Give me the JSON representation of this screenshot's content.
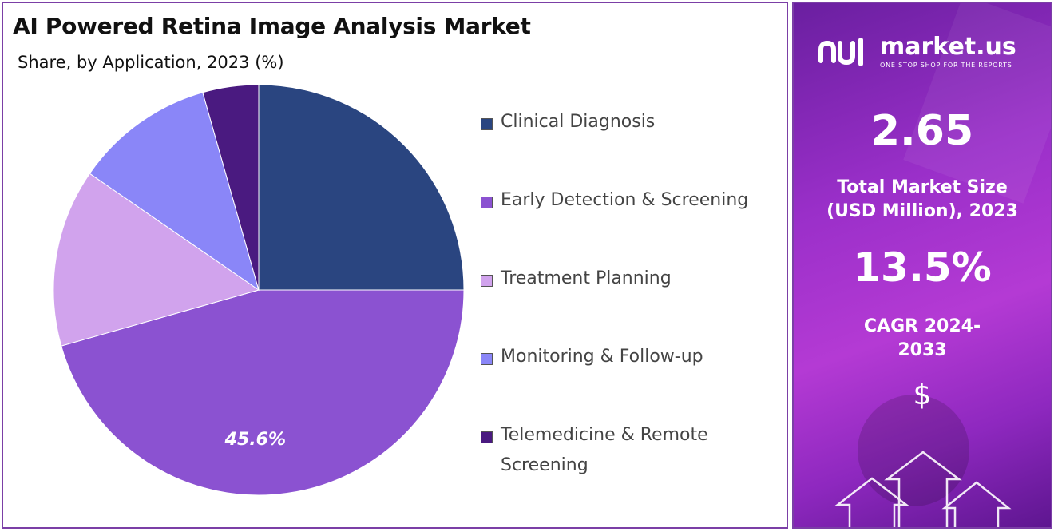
{
  "chart_data": {
    "type": "pie",
    "title": "AI Powered Retina Image Analysis Market",
    "subtitle": "Share, by Application, 2023 (%)",
    "categories": [
      "Clinical Diagnosis",
      "Early Detection & Screening",
      "Treatment Planning",
      "Monitoring & Follow-up",
      "Telemedicine & Remote Screening"
    ],
    "values": [
      25.0,
      45.6,
      14.0,
      11.0,
      4.4
    ],
    "colors": [
      "#2a4580",
      "#8b52d1",
      "#d1a3ed",
      "#8a86f8",
      "#4a1a80"
    ],
    "data_labels": [
      "",
      "45.6%",
      "",
      "",
      ""
    ],
    "legend_position": "right"
  },
  "side_panel": {
    "brand_name": "market.us",
    "brand_tagline": "ONE STOP SHOP FOR THE REPORTS",
    "market_size_value": "2.65",
    "market_size_label": "Total Market Size (USD Million), 2023",
    "cagr_value": "13.5%",
    "cagr_label": "CAGR 2024-2033",
    "currency_symbol": "$"
  }
}
